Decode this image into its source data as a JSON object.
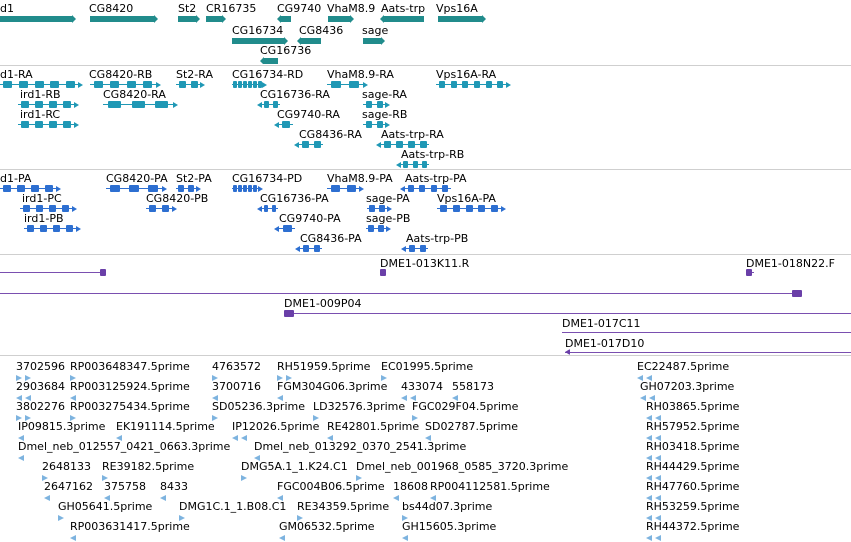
{
  "colors": {
    "gene": "#218c8c",
    "rna": "#1f98b5",
    "protein": "#2d6fd1",
    "clone": "#6a3fa8",
    "est": "#7db3df",
    "separator": "#cfcfcf"
  },
  "gene_track": {
    "labels": [
      "d1",
      "CG8420",
      "St2",
      "CR16735",
      "CG9740",
      "VhaM8.9",
      "Aats-trp",
      "Vps16A",
      "CG16734",
      "CG8436",
      "sage",
      "CG16736"
    ]
  },
  "rna_track": {
    "labels": [
      "d1-RA",
      "CG8420-RB",
      "St2-RA",
      "CG16734-RD",
      "VhaM8.9-RA",
      "Vps16A-RA",
      "ird1-RB",
      "CG8420-RA",
      "CG16736-RA",
      "sage-RA",
      "ird1-RC",
      "CG9740-RA",
      "sage-RB",
      "CG8436-RA",
      "Aats-trp-RA",
      "Aats-trp-RB"
    ]
  },
  "protein_track": {
    "labels": [
      "d1-PA",
      "CG8420-PA",
      "St2-PA",
      "CG16734-PD",
      "VhaM8.9-PA",
      "Aats-trp-PA",
      "ird1-PC",
      "CG8420-PB",
      "CG16736-PA",
      "sage-PA",
      "Vps16A-PA",
      "ird1-PB",
      "CG9740-PA",
      "sage-PB",
      "CG8436-PA",
      "Aats-trp-PB"
    ]
  },
  "clone_track": {
    "labels": [
      "DME1-013K11.R",
      "DME1-018N22.F",
      "DME1-009P04",
      "DME1-017C11",
      "DME1-017D10"
    ]
  },
  "est_track": {
    "labels": [
      "3702596",
      "RP003648347.5prime",
      "4763572",
      "RH51959.5prime",
      "EC01995.5prime",
      "EC22487.5prime",
      "2903684",
      "RP003125924.5prime",
      "3700716",
      "FGM304G06.3prime",
      "433074",
      "558173",
      "GH07203.3prime",
      "3802276",
      "RP003275434.5prime",
      "SD05236.3prime",
      "LD32576.3prime",
      "FGC029F04.5prime",
      "RH03865.5prime",
      "IP09815.3prime",
      "EK191114.5prime",
      "IP12026.5prime",
      "RE42801.5prime",
      "SD02787.5prime",
      "RH57952.5prime",
      "Dmel_neb_012557_0421_0663.3prime",
      "Dmel_neb_013292_0370_2541.3prime",
      "RH03418.5prime",
      "2648133",
      "RE39182.5prime",
      "DMG5A.1_1.K24.C1",
      "Dmel_neb_001968_0585_3720.3prime",
      "RH44429.5prime",
      "2647162",
      "375758",
      "8433",
      "FGC004B06.5prime",
      "18608",
      "RP004112581.5prime",
      "RH47760.5prime",
      "GH05641.5prime",
      "DMG1C.1_1.B08.C1",
      "RE34359.5prime",
      "bs44d07.3prime",
      "RH53259.5prime",
      "RP003631417.5prime",
      "GM06532.5prime",
      "GH15605.3prime",
      "RH44372.5prime"
    ]
  }
}
